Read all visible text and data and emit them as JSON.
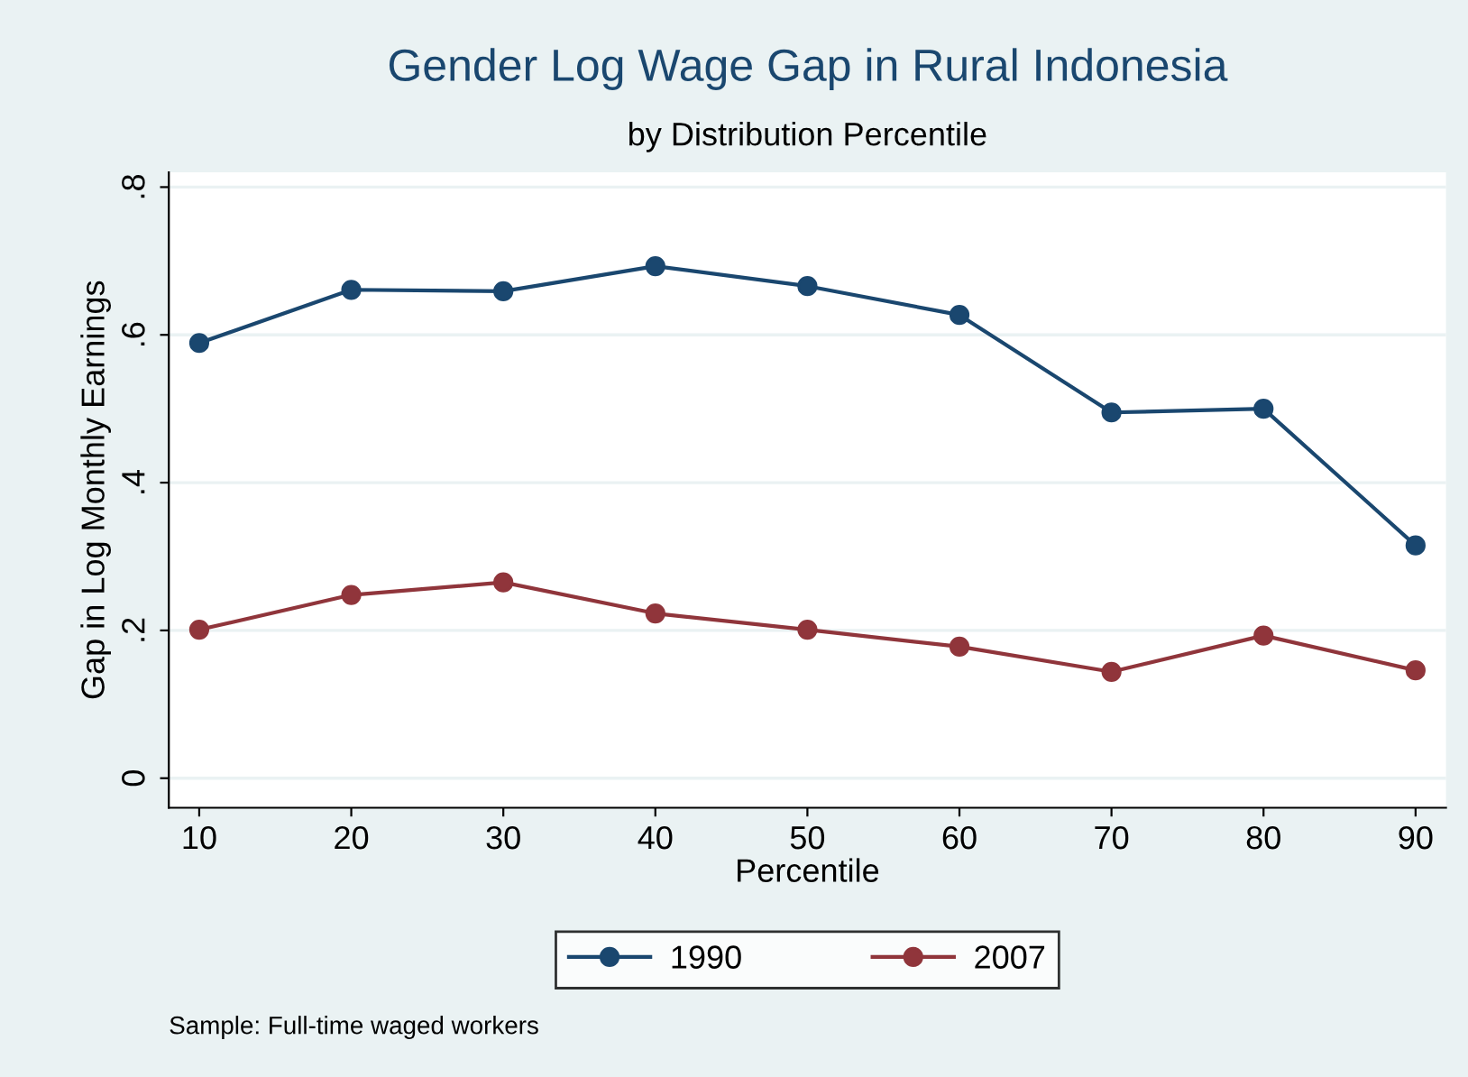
{
  "chart_data": {
    "type": "line",
    "title": "Gender Log Wage Gap in Rural Indonesia",
    "subtitle": "by Distribution Percentile",
    "xlabel": "Percentile",
    "ylabel": "Gap in Log Monthly Earnings",
    "x": [
      10,
      20,
      30,
      40,
      50,
      60,
      70,
      80,
      90
    ],
    "series": [
      {
        "name": "1990",
        "color": "#1a476f",
        "values": [
          0.589,
          0.661,
          0.659,
          0.693,
          0.666,
          0.627,
          0.495,
          0.5,
          0.315
        ]
      },
      {
        "name": "2007",
        "color": "#90353b",
        "values": [
          0.201,
          0.248,
          0.265,
          0.223,
          0.201,
          0.178,
          0.144,
          0.193,
          0.146
        ]
      }
    ],
    "xlim": [
      8,
      92
    ],
    "xticks": [
      10,
      20,
      30,
      40,
      50,
      60,
      70,
      80,
      90
    ],
    "ylim": [
      -0.04,
      0.82
    ],
    "yticks": [
      {
        "value": 0,
        "label": "0"
      },
      {
        "value": 0.2,
        "label": ".2"
      },
      {
        "value": 0.4,
        "label": ".4"
      },
      {
        "value": 0.6,
        "label": ".6"
      },
      {
        "value": 0.8,
        "label": ".8"
      }
    ],
    "grid": "y",
    "legend": "bottom",
    "marker": "circle",
    "line_style": "solid",
    "annotations": [
      "Sample: Full-time waged workers"
    ]
  }
}
